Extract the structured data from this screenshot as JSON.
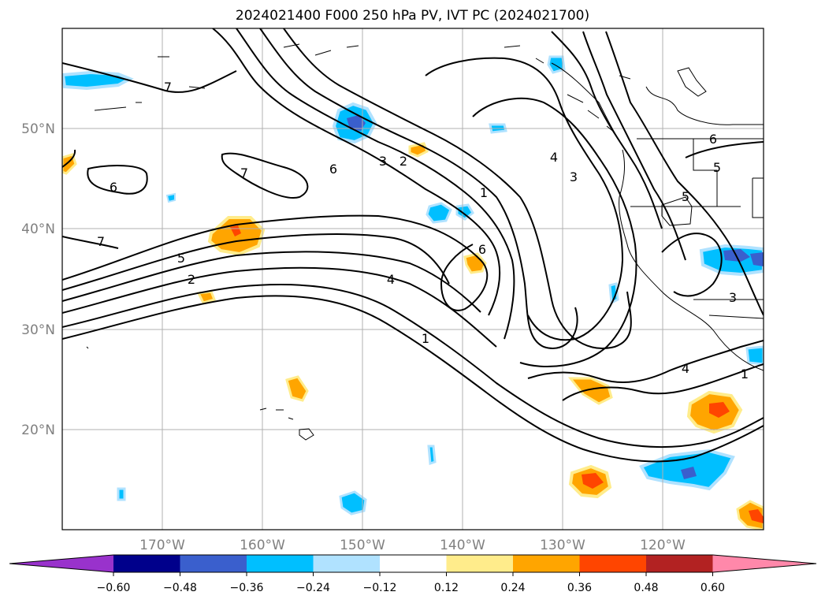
{
  "title": "2024021400 F000 250 hPa PV, IVT PC (2024021700)",
  "map": {
    "lon_labels": [
      "170°W",
      "160°W",
      "150°W",
      "140°W",
      "130°W",
      "120°W"
    ],
    "lat_labels": [
      "50°N",
      "40°N",
      "30°N",
      "20°N"
    ],
    "grid": true,
    "contour_color": "#000000",
    "contour_labels": [
      "7",
      "6",
      "7",
      "6",
      "3",
      "2",
      "1",
      "4",
      "3",
      "6",
      "5",
      "4",
      "1",
      "7",
      "5",
      "2",
      "6",
      "5",
      "3",
      "4",
      "1"
    ]
  },
  "colorbar": {
    "ticks": [
      "−0.60",
      "−0.48",
      "−0.36",
      "−0.24",
      "−0.12",
      "0.12",
      "0.24",
      "0.36",
      "0.48",
      "0.60"
    ],
    "colors": [
      "#9932cc",
      "#00008b",
      "#3a5fcd",
      "#00bfff",
      "#b0e2ff",
      "#ffffff",
      "#ffec8b",
      "#ffa500",
      "#ff4500",
      "#b22222",
      "#ff88aa"
    ]
  }
}
